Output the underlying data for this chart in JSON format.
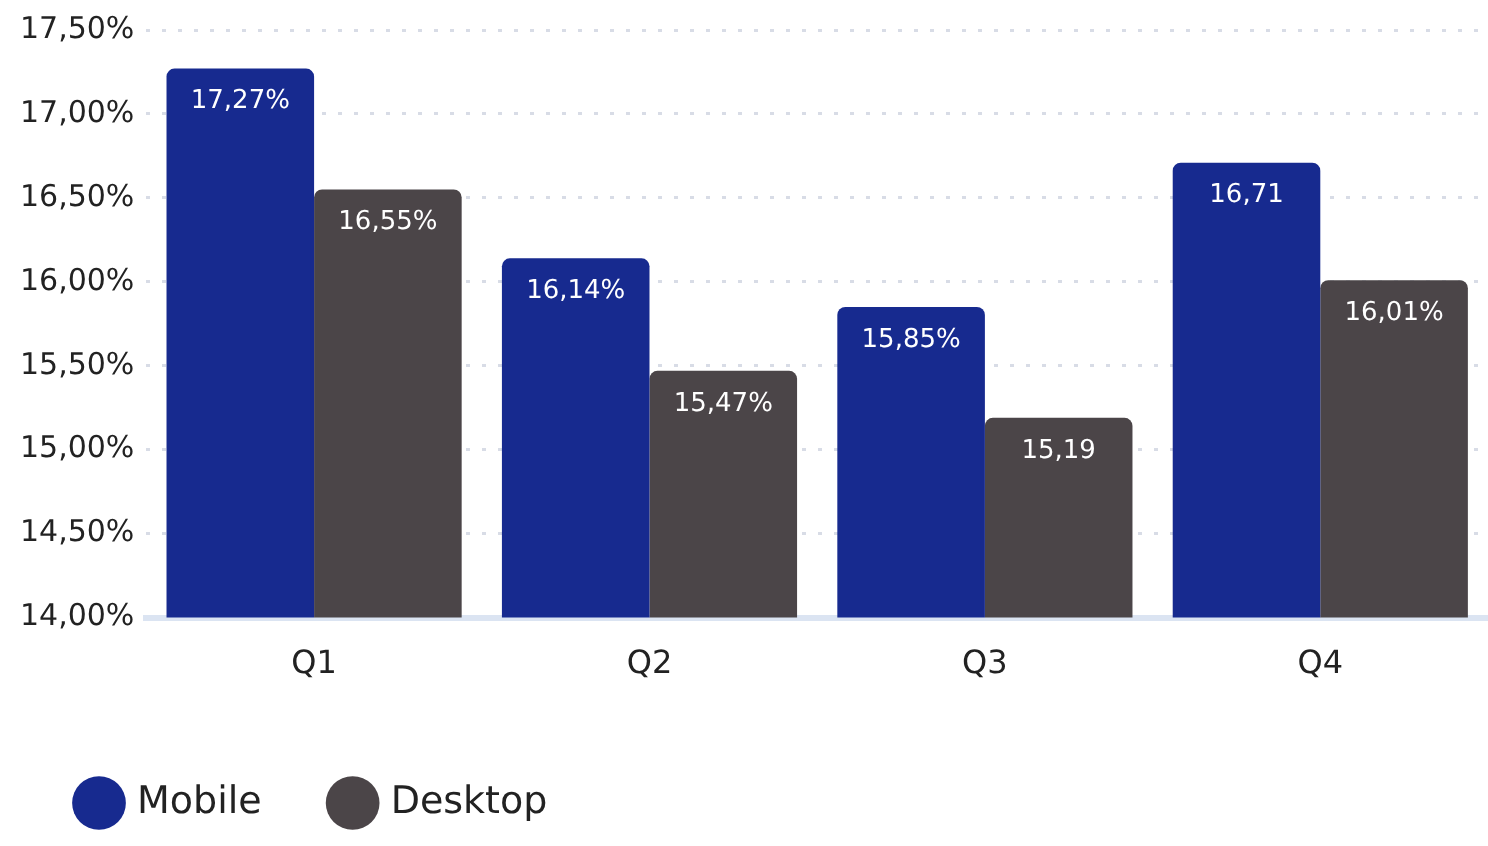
{
  "chart_data": {
    "type": "bar",
    "categories": [
      "Q1",
      "Q2",
      "Q3",
      "Q4"
    ],
    "series": [
      {
        "name": "Mobile",
        "color": "#172a8f",
        "values": [
          17.27,
          16.14,
          15.85,
          16.71
        ],
        "value_labels": [
          "17,27%",
          "16,14%",
          "15,85%",
          "16,71"
        ]
      },
      {
        "name": "Desktop",
        "color": "#4b4548",
        "values": [
          16.55,
          15.47,
          15.19,
          16.01
        ],
        "value_labels": [
          "16,55%",
          "15,47%",
          "15,19",
          "16,01%"
        ]
      }
    ],
    "ylim": [
      14,
      17.5
    ],
    "yticks": [
      {
        "value": 14,
        "label": "14,00%"
      },
      {
        "value": 14.5,
        "label": "14,50%"
      },
      {
        "value": 15,
        "label": "15,00%"
      },
      {
        "value": 15.5,
        "label": "15,50%"
      },
      {
        "value": 16,
        "label": "16,00%"
      },
      {
        "value": 16.5,
        "label": "16,50%"
      },
      {
        "value": 17,
        "label": "17,00%"
      },
      {
        "value": 17.5,
        "label": "17,50%"
      }
    ],
    "grid": "y",
    "legend": "bottom left",
    "marker": "circle"
  }
}
